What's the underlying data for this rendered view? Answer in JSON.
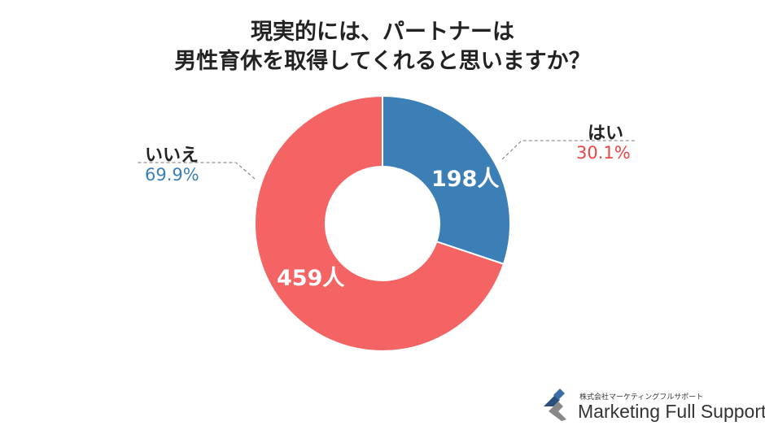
{
  "title_line1": "現実的には、パートナーは",
  "title_line2": "男性育休を取得してくれると思いますか？",
  "chart_data": {
    "type": "pie",
    "donut": true,
    "categories": [
      "はい",
      "いいえ"
    ],
    "values": [
      198,
      459
    ],
    "value_labels": [
      "198人",
      "459人"
    ],
    "percent_labels": [
      "30.1%",
      "69.9%"
    ],
    "colors": [
      "#3b7fb6",
      "#f46464"
    ],
    "percent_colors": [
      "#e84545",
      "#3b7fb6"
    ]
  },
  "logo": {
    "company_jp": "株式会社マーケティングフルサポート",
    "company_en": "Marketing Full Support"
  }
}
